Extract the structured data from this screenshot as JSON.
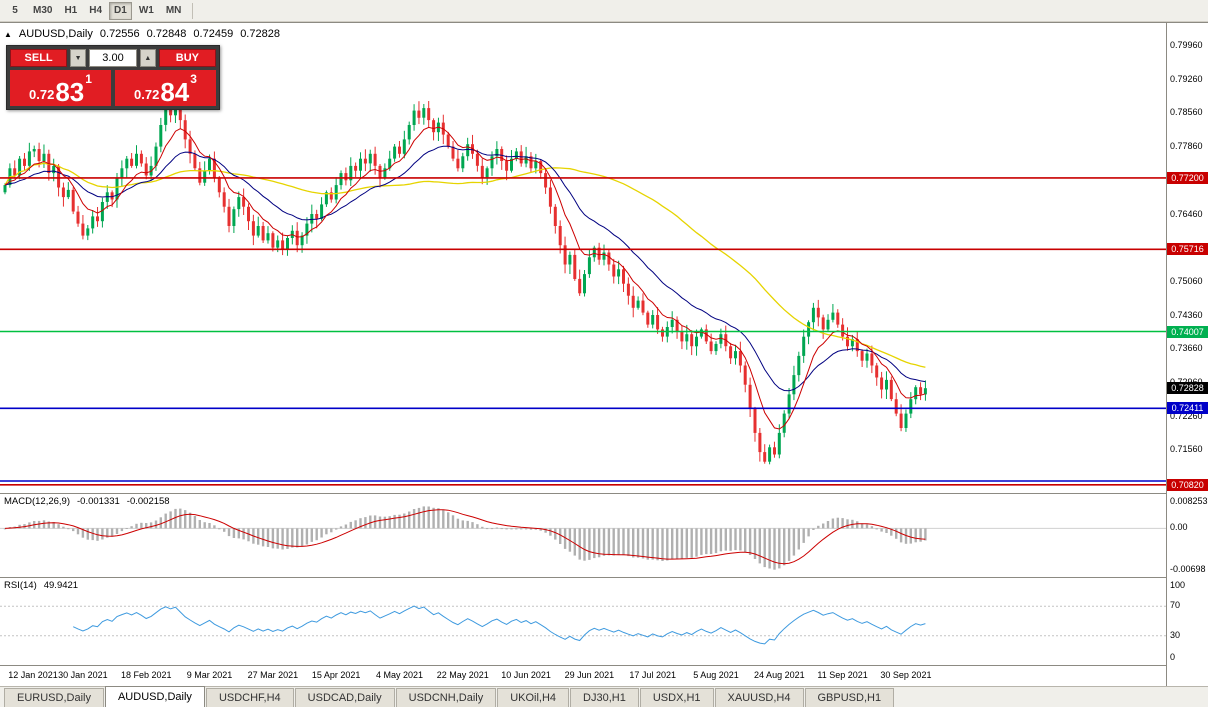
{
  "toolbar": {
    "timeframes": [
      "5",
      "M30",
      "H1",
      "H4",
      "D1",
      "W1",
      "MN"
    ],
    "active": "D1"
  },
  "chart": {
    "corner_marker": "▲",
    "symbol_title": "AUDUSD,Daily",
    "ohlc": {
      "open": "0.72556",
      "high": "0.72848",
      "low": "0.72459",
      "close": "0.72828"
    }
  },
  "trade_panel": {
    "sell_label": "SELL",
    "buy_label": "BUY",
    "volume": "3.00",
    "sell_price": {
      "prefix": "0.72",
      "pips": "83",
      "point": "1"
    },
    "buy_price": {
      "prefix": "0.72",
      "pips": "84",
      "point": "3"
    }
  },
  "price_axis": {
    "ticks": [
      {
        "text": "0.79960",
        "value": 0.7996
      },
      {
        "text": "0.79260",
        "value": 0.7926
      },
      {
        "text": "0.78560",
        "value": 0.7856
      },
      {
        "text": "0.77860",
        "value": 0.7786
      },
      {
        "text": "0.76460",
        "value": 0.7646
      },
      {
        "text": "0.75060",
        "value": 0.7506
      },
      {
        "text": "0.74360",
        "value": 0.7436
      },
      {
        "text": "0.73660",
        "value": 0.7366
      },
      {
        "text": "0.72960",
        "value": 0.7296
      },
      {
        "text": "0.72260",
        "value": 0.7226
      },
      {
        "text": "0.71560",
        "value": 0.7156
      }
    ],
    "badges": [
      {
        "text": "0.77200",
        "value": 0.772,
        "bg": "#c80000"
      },
      {
        "text": "0.75716",
        "value": 0.75716,
        "bg": "#c80000"
      },
      {
        "text": "0.74007",
        "value": 0.74007,
        "bg": "#00b050"
      },
      {
        "text": "0.72828",
        "value": 0.72828,
        "bg": "#000000"
      },
      {
        "text": "0.72411",
        "value": 0.72411,
        "bg": "#0000c8"
      },
      {
        "text": "0.70820",
        "value": 0.7082,
        "bg": "#c80000"
      }
    ]
  },
  "hlines": [
    {
      "value": 0.772,
      "color": "#c80000",
      "width": 1.6
    },
    {
      "value": 0.75716,
      "color": "#c80000",
      "width": 1.6
    },
    {
      "value": 0.74007,
      "color": "#00c040",
      "width": 1.6
    },
    {
      "value": 0.72411,
      "color": "#0000c8",
      "width": 1.6
    },
    {
      "value": 0.709,
      "color": "#0000c8",
      "width": 1.6
    },
    {
      "value": 0.7082,
      "color": "#c80000",
      "width": 1.6
    }
  ],
  "indicators": {
    "macd": {
      "label": "MACD(12,26,9)",
      "value_main": "-0.001331",
      "value_signal": "-0.002158",
      "axis": {
        "top": "0.008253",
        "zero": "0.00",
        "bottom": "-0.00698"
      },
      "params": {
        "fast": 12,
        "slow": 26,
        "signal": 9
      },
      "colors": {
        "histogram": "#b0b0b0",
        "signal": "#cc0000"
      }
    },
    "rsi": {
      "label": "RSI(14)",
      "value": "49.9421",
      "axis": [
        "100",
        "70",
        "30",
        "0"
      ],
      "levels": [
        70,
        30
      ],
      "period": 14,
      "color": "#3e9adf"
    }
  },
  "date_axis": {
    "labels": [
      "12 Jan 2021",
      "30 Jan 2021",
      "18 Feb 2021",
      "9 Mar 2021",
      "27 Mar 2021",
      "15 Apr 2021",
      "4 May 2021",
      "22 May 2021",
      "10 Jun 2021",
      "29 Jun 2021",
      "17 Jul 2021",
      "5 Aug 2021",
      "24 Aug 2021",
      "11 Sep 2021",
      "30 Sep 2021"
    ],
    "first_bar_index": 3,
    "bars_per_label": 13
  },
  "tabs": {
    "items": [
      "EURUSD,Daily",
      "AUDUSD,Daily",
      "USDCHF,H4",
      "USDCAD,Daily",
      "USDCNH,Daily",
      "UKOil,H4",
      "DJ30,H1",
      "USDX,H1",
      "XAUUSD,H4",
      "GBPUSD,H1"
    ],
    "active": "AUDUSD,Daily"
  },
  "colors": {
    "up": "#00a651",
    "down": "#e63030",
    "ma_fast": "#cc0000",
    "ma_mid": "#000080",
    "ma_slow": "#e6d400",
    "trade_red": "#e11d23",
    "panel_bg": "#3c3c3c"
  },
  "chart_data": {
    "type": "candlestick",
    "symbol": "AUDUSD",
    "timeframe": "Daily",
    "date_range": [
      "12 Jan 2021",
      "30 Sep 2021"
    ],
    "y_axis": {
      "min": 0.7065,
      "max": 0.8042
    },
    "current_bid": 0.72828,
    "horizontal_levels": [
      0.772,
      0.75716,
      0.74007,
      0.72411,
      0.709,
      0.7082
    ],
    "overlays": [
      {
        "name": "ema-fast",
        "type": "ema",
        "period": 8,
        "color": "#cc0000"
      },
      {
        "name": "ema-mid",
        "type": "ema",
        "period": 21,
        "color": "#000080"
      },
      {
        "name": "sma-slow",
        "type": "sma",
        "period": 55,
        "color": "#e6d400"
      }
    ],
    "closes": [
      0.7705,
      0.774,
      0.7725,
      0.776,
      0.7745,
      0.7775,
      0.778,
      0.7755,
      0.777,
      0.773,
      0.7745,
      0.77,
      0.768,
      0.7695,
      0.765,
      0.7625,
      0.76,
      0.7615,
      0.764,
      0.763,
      0.767,
      0.769,
      0.7675,
      0.772,
      0.774,
      0.776,
      0.7745,
      0.777,
      0.775,
      0.7725,
      0.7745,
      0.7785,
      0.783,
      0.7865,
      0.785,
      0.7875,
      0.784,
      0.78,
      0.777,
      0.774,
      0.771,
      0.7735,
      0.776,
      0.772,
      0.769,
      0.766,
      0.762,
      0.7655,
      0.768,
      0.766,
      0.763,
      0.76,
      0.762,
      0.759,
      0.7605,
      0.7575,
      0.759,
      0.757,
      0.7595,
      0.761,
      0.758,
      0.76,
      0.7625,
      0.7645,
      0.7635,
      0.7665,
      0.769,
      0.7675,
      0.7705,
      0.773,
      0.7715,
      0.7745,
      0.7735,
      0.776,
      0.775,
      0.777,
      0.7745,
      0.772,
      0.774,
      0.776,
      0.7785,
      0.777,
      0.78,
      0.783,
      0.786,
      0.7845,
      0.7865,
      0.784,
      0.7815,
      0.7835,
      0.781,
      0.7785,
      0.776,
      0.774,
      0.7765,
      0.779,
      0.777,
      0.7745,
      0.772,
      0.774,
      0.7765,
      0.778,
      0.7755,
      0.7735,
      0.776,
      0.7775,
      0.775,
      0.7765,
      0.774,
      0.7755,
      0.773,
      0.77,
      0.766,
      0.762,
      0.758,
      0.754,
      0.756,
      0.751,
      0.748,
      0.752,
      0.7555,
      0.7575,
      0.755,
      0.7565,
      0.754,
      0.7515,
      0.753,
      0.75,
      0.7475,
      0.745,
      0.7465,
      0.744,
      0.7415,
      0.7435,
      0.7405,
      0.739,
      0.741,
      0.7425,
      0.74,
      0.738,
      0.7395,
      0.737,
      0.739,
      0.7405,
      0.738,
      0.736,
      0.7375,
      0.7395,
      0.737,
      0.7345,
      0.736,
      0.733,
      0.729,
      0.724,
      0.719,
      0.715,
      0.713,
      0.716,
      0.7145,
      0.719,
      0.723,
      0.727,
      0.731,
      0.735,
      0.739,
      0.742,
      0.745,
      0.743,
      0.7405,
      0.7425,
      0.744,
      0.7415,
      0.739,
      0.737,
      0.7385,
      0.736,
      0.734,
      0.7355,
      0.733,
      0.7305,
      0.728,
      0.73,
      0.726,
      0.723,
      0.72,
      0.723,
      0.726,
      0.7285,
      0.727,
      0.72828
    ]
  }
}
